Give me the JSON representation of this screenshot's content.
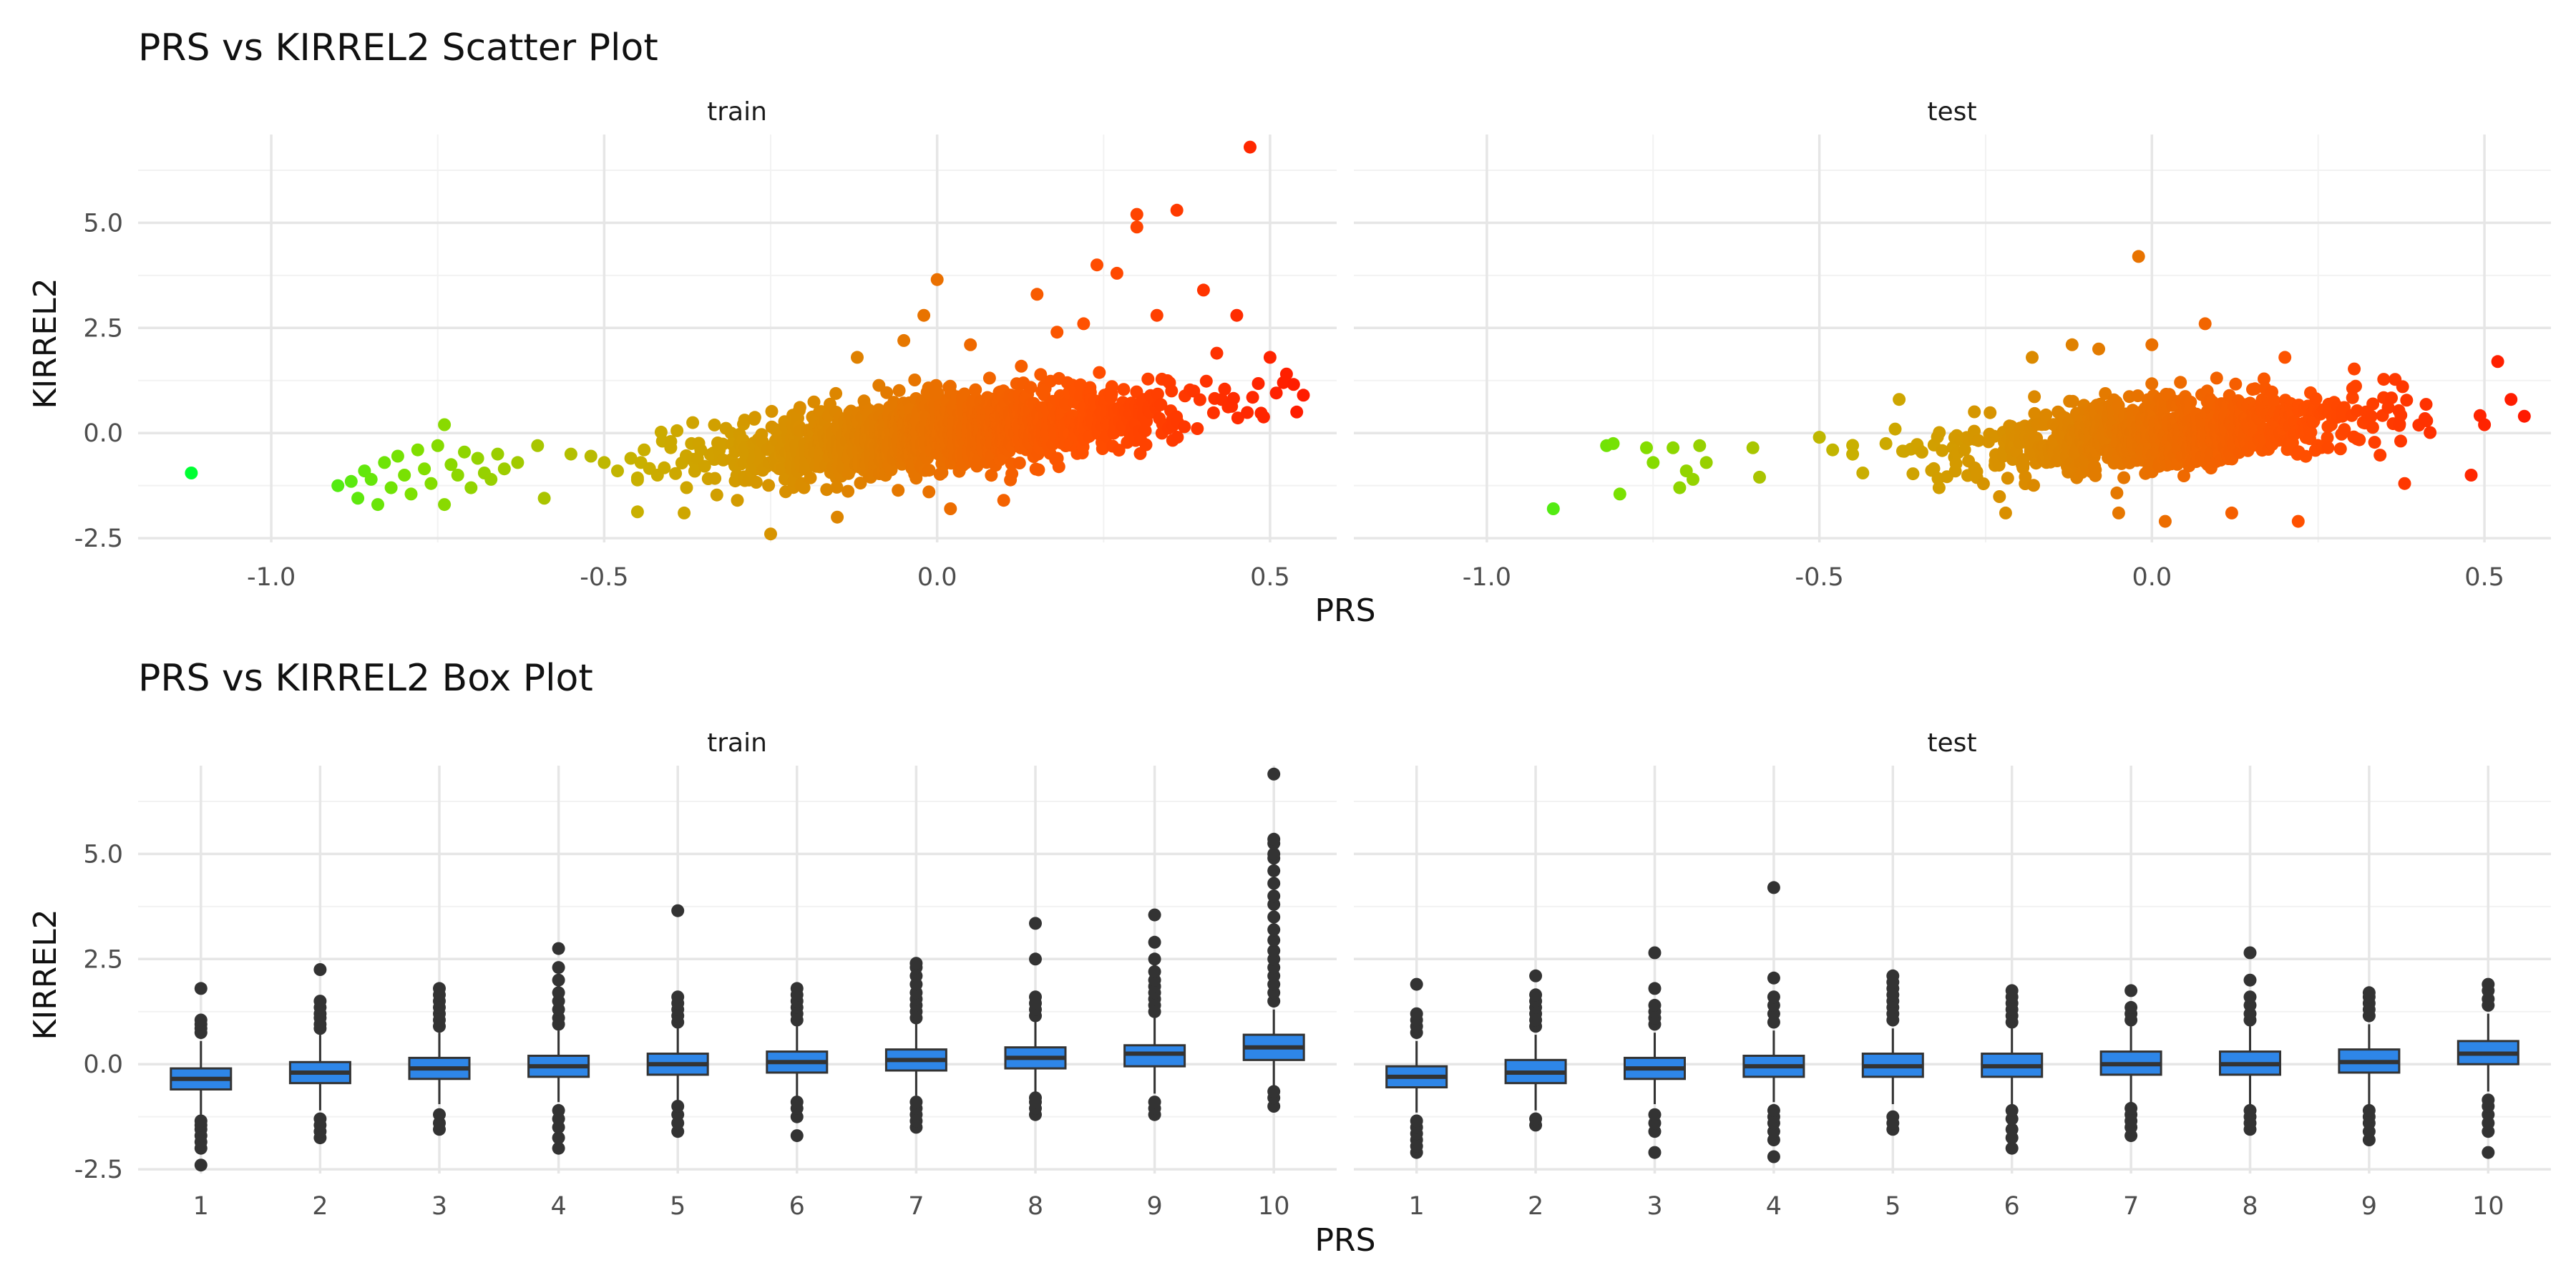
{
  "chart_data": [
    {
      "type": "scatter",
      "title": "PRS vs KIRREL2 Scatter Plot",
      "xlabel": "PRS",
      "ylabel": "KIRREL2",
      "xlim": [
        -1.2,
        0.6
      ],
      "ylim": [
        -2.6,
        7.1
      ],
      "xticks": [
        -1.0,
        -0.5,
        0.0,
        0.5
      ],
      "xtick_labels": [
        "-1.0",
        "-0.5",
        "0.0",
        "0.5"
      ],
      "yticks": [
        -2.5,
        0.0,
        2.5,
        5.0
      ],
      "ytick_labels": [
        "-2.5",
        "0.0",
        "2.5",
        "5.0"
      ],
      "grid": true,
      "color_gradient": [
        "#00ff33",
        "#7fe000",
        "#c9b000",
        "#e08000",
        "#ff5000",
        "#ff1a00"
      ],
      "facets": [
        {
          "name": "train",
          "dense_cloud": {
            "n": 1800,
            "x_center": 0.02,
            "x_sd": 0.16,
            "slope": 1.55,
            "y_sd": 0.42
          },
          "points": [
            [
              -1.12,
              -0.95
            ],
            [
              -0.9,
              -1.25
            ],
            [
              -0.88,
              -1.15
            ],
            [
              -0.87,
              -1.55
            ],
            [
              -0.86,
              -0.9
            ],
            [
              -0.85,
              -1.1
            ],
            [
              -0.84,
              -1.7
            ],
            [
              -0.83,
              -0.7
            ],
            [
              -0.82,
              -1.3
            ],
            [
              -0.81,
              -0.55
            ],
            [
              -0.8,
              -1.0
            ],
            [
              -0.79,
              -1.45
            ],
            [
              -0.78,
              -0.4
            ],
            [
              -0.77,
              -0.85
            ],
            [
              -0.76,
              -1.2
            ],
            [
              -0.75,
              -0.3
            ],
            [
              -0.74,
              -1.7
            ],
            [
              -0.74,
              0.2
            ],
            [
              -0.73,
              -0.75
            ],
            [
              -0.72,
              -1.0
            ],
            [
              -0.71,
              -0.45
            ],
            [
              -0.7,
              -1.3
            ],
            [
              -0.69,
              -0.6
            ],
            [
              -0.68,
              -0.95
            ],
            [
              -0.67,
              -1.1
            ],
            [
              -0.66,
              -0.5
            ],
            [
              -0.65,
              -0.85
            ],
            [
              -0.63,
              -0.7
            ],
            [
              -0.6,
              -0.3
            ],
            [
              -0.59,
              -1.55
            ],
            [
              -0.55,
              -0.5
            ],
            [
              -0.52,
              -0.55
            ],
            [
              -0.5,
              -0.7
            ],
            [
              -0.48,
              -0.9
            ],
            [
              -0.46,
              -0.6
            ],
            [
              -0.44,
              -0.4
            ],
            [
              -0.42,
              -1.0
            ],
            [
              -0.4,
              -0.2
            ],
            [
              -0.38,
              -1.9
            ],
            [
              -0.36,
              -0.6
            ],
            [
              -0.3,
              -1.6
            ],
            [
              -0.25,
              -2.4
            ],
            [
              -0.2,
              -1.3
            ],
            [
              -0.15,
              -2.0
            ],
            [
              -0.12,
              1.8
            ],
            [
              -0.05,
              2.2
            ],
            [
              -0.02,
              2.8
            ],
            [
              0.0,
              3.65
            ],
            [
              0.02,
              -1.8
            ],
            [
              0.05,
              2.1
            ],
            [
              0.1,
              -1.6
            ],
            [
              0.15,
              3.3
            ],
            [
              0.18,
              2.4
            ],
            [
              0.22,
              2.6
            ],
            [
              0.24,
              4.0
            ],
            [
              0.27,
              3.8
            ],
            [
              0.3,
              5.2
            ],
            [
              0.3,
              4.9
            ],
            [
              0.33,
              2.8
            ],
            [
              0.36,
              5.3
            ],
            [
              0.4,
              3.4
            ],
            [
              0.42,
              1.9
            ],
            [
              0.45,
              2.8
            ],
            [
              0.47,
              6.8
            ],
            [
              0.5,
              1.8
            ],
            [
              0.52,
              1.2
            ],
            [
              0.54,
              0.5
            ],
            [
              0.55,
              0.9
            ]
          ]
        },
        {
          "name": "test",
          "dense_cloud": {
            "n": 1000,
            "x_center": 0.02,
            "x_sd": 0.15,
            "slope": 1.2,
            "y_sd": 0.42
          },
          "points": [
            [
              -0.9,
              -1.8
            ],
            [
              -0.82,
              -0.3
            ],
            [
              -0.81,
              -0.25
            ],
            [
              -0.8,
              -1.45
            ],
            [
              -0.76,
              -0.35
            ],
            [
              -0.75,
              -0.7
            ],
            [
              -0.72,
              -0.35
            ],
            [
              -0.71,
              -1.3
            ],
            [
              -0.7,
              -0.9
            ],
            [
              -0.69,
              -1.1
            ],
            [
              -0.68,
              -0.3
            ],
            [
              -0.67,
              -0.7
            ],
            [
              -0.6,
              -0.35
            ],
            [
              -0.59,
              -1.05
            ],
            [
              -0.5,
              -0.1
            ],
            [
              -0.48,
              -0.4
            ],
            [
              -0.4,
              -0.25
            ],
            [
              -0.38,
              0.8
            ],
            [
              -0.32,
              -1.3
            ],
            [
              -0.22,
              -1.9
            ],
            [
              -0.18,
              1.8
            ],
            [
              -0.12,
              2.1
            ],
            [
              -0.08,
              2.0
            ],
            [
              -0.05,
              -1.9
            ],
            [
              -0.02,
              4.2
            ],
            [
              0.0,
              2.1
            ],
            [
              0.02,
              -2.1
            ],
            [
              0.08,
              2.6
            ],
            [
              0.12,
              -1.9
            ],
            [
              0.2,
              1.8
            ],
            [
              0.22,
              -2.1
            ],
            [
              0.38,
              -1.2
            ],
            [
              0.48,
              -1.0
            ],
            [
              0.5,
              0.2
            ],
            [
              0.52,
              1.7
            ],
            [
              0.54,
              0.8
            ],
            [
              0.56,
              0.4
            ]
          ]
        }
      ]
    },
    {
      "type": "box",
      "title": "PRS vs KIRREL2 Box Plot",
      "xlabel": "PRS",
      "ylabel": "KIRREL2",
      "categories": [
        "1",
        "2",
        "3",
        "4",
        "5",
        "6",
        "7",
        "8",
        "9",
        "10"
      ],
      "ylim": [
        -2.6,
        7.1
      ],
      "yticks": [
        -2.5,
        0.0,
        2.5,
        5.0
      ],
      "ytick_labels": [
        "-2.5",
        "0.0",
        "2.5",
        "5.0"
      ],
      "grid": true,
      "box_color": "#2e86e8",
      "facets": [
        {
          "name": "train",
          "boxes": [
            {
              "q1": -0.6,
              "median": -0.35,
              "q3": -0.1,
              "wlo": -1.2,
              "whi": 0.55,
              "outliers": [
                -2.4,
                -2.0,
                -1.85,
                -1.7,
                -1.55,
                -1.45,
                -1.35,
                0.75,
                0.85,
                0.95,
                1.05,
                1.8
              ]
            },
            {
              "q1": -0.45,
              "median": -0.2,
              "q3": 0.05,
              "wlo": -1.1,
              "whi": 0.7,
              "outliers": [
                -1.75,
                -1.6,
                -1.45,
                -1.3,
                0.85,
                0.95,
                1.1,
                1.2,
                1.35,
                1.5,
                2.25
              ]
            },
            {
              "q1": -0.35,
              "median": -0.1,
              "q3": 0.15,
              "wlo": -0.95,
              "whi": 0.75,
              "outliers": [
                -1.55,
                -1.4,
                -1.2,
                0.9,
                1.05,
                1.2,
                1.35,
                1.5,
                1.65,
                1.8
              ]
            },
            {
              "q1": -0.3,
              "median": -0.05,
              "q3": 0.2,
              "wlo": -0.9,
              "whi": 0.8,
              "outliers": [
                -2.0,
                -1.75,
                -1.5,
                -1.3,
                -1.1,
                0.95,
                1.1,
                1.3,
                1.5,
                1.7,
                2.0,
                2.3,
                2.75
              ]
            },
            {
              "q1": -0.25,
              "median": 0.0,
              "q3": 0.25,
              "wlo": -0.85,
              "whi": 0.85,
              "outliers": [
                -1.6,
                -1.4,
                -1.2,
                -1.0,
                1.0,
                1.15,
                1.3,
                1.45,
                1.6,
                3.65
              ]
            },
            {
              "q1": -0.2,
              "median": 0.05,
              "q3": 0.3,
              "wlo": -0.8,
              "whi": 0.9,
              "outliers": [
                -1.7,
                -1.25,
                -1.05,
                -0.9,
                1.05,
                1.2,
                1.35,
                1.5,
                1.65,
                1.8
              ]
            },
            {
              "q1": -0.15,
              "median": 0.1,
              "q3": 0.35,
              "wlo": -0.75,
              "whi": 0.95,
              "outliers": [
                -1.5,
                -1.35,
                -1.2,
                -1.05,
                -0.9,
                1.1,
                1.25,
                1.4,
                1.55,
                1.7,
                1.9,
                2.1,
                2.3,
                2.4
              ]
            },
            {
              "q1": -0.1,
              "median": 0.15,
              "q3": 0.4,
              "wlo": -0.7,
              "whi": 1.0,
              "outliers": [
                -1.2,
                -1.05,
                -0.9,
                -0.8,
                1.15,
                1.3,
                1.45,
                1.6,
                2.5,
                3.35
              ]
            },
            {
              "q1": -0.05,
              "median": 0.25,
              "q3": 0.45,
              "wlo": -0.7,
              "whi": 1.1,
              "outliers": [
                -1.2,
                -1.05,
                -0.9,
                1.25,
                1.4,
                1.55,
                1.7,
                1.85,
                2.0,
                2.2,
                2.5,
                2.9,
                3.55
              ]
            },
            {
              "q1": 0.1,
              "median": 0.4,
              "q3": 0.7,
              "wlo": -0.5,
              "whi": 1.3,
              "outliers": [
                -1.0,
                -0.8,
                -0.65,
                1.5,
                1.7,
                1.9,
                2.1,
                2.3,
                2.5,
                2.7,
                2.95,
                3.2,
                3.5,
                3.8,
                4.0,
                4.3,
                4.6,
                4.9,
                5.0,
                5.25,
                5.35,
                6.9
              ]
            }
          ]
        },
        {
          "name": "test",
          "boxes": [
            {
              "q1": -0.55,
              "median": -0.3,
              "q3": -0.05,
              "wlo": -1.15,
              "whi": 0.55,
              "outliers": [
                -2.1,
                -1.95,
                -1.8,
                -1.65,
                -1.5,
                -1.35,
                0.75,
                0.9,
                1.05,
                1.2,
                1.9
              ]
            },
            {
              "q1": -0.45,
              "median": -0.2,
              "q3": 0.1,
              "wlo": -1.1,
              "whi": 0.7,
              "outliers": [
                -1.45,
                -1.3,
                0.9,
                1.05,
                1.2,
                1.35,
                1.5,
                1.65,
                2.1
              ]
            },
            {
              "q1": -0.35,
              "median": -0.1,
              "q3": 0.15,
              "wlo": -0.95,
              "whi": 0.75,
              "outliers": [
                -2.1,
                -1.6,
                -1.4,
                -1.2,
                0.95,
                1.1,
                1.25,
                1.4,
                1.8,
                2.65
              ]
            },
            {
              "q1": -0.3,
              "median": -0.05,
              "q3": 0.2,
              "wlo": -0.9,
              "whi": 0.8,
              "outliers": [
                -2.2,
                -1.8,
                -1.6,
                -1.4,
                -1.25,
                -1.1,
                1.0,
                1.2,
                1.4,
                1.6,
                2.05,
                4.2
              ]
            },
            {
              "q1": -0.3,
              "median": -0.05,
              "q3": 0.25,
              "wlo": -0.95,
              "whi": 0.85,
              "outliers": [
                -1.55,
                -1.4,
                -1.25,
                1.05,
                1.2,
                1.35,
                1.5,
                1.65,
                1.8,
                1.95,
                2.1
              ]
            },
            {
              "q1": -0.3,
              "median": -0.05,
              "q3": 0.25,
              "wlo": -0.95,
              "whi": 0.85,
              "outliers": [
                -2.0,
                -1.75,
                -1.55,
                -1.3,
                -1.1,
                1.0,
                1.15,
                1.3,
                1.45,
                1.6,
                1.75
              ]
            },
            {
              "q1": -0.25,
              "median": 0.0,
              "q3": 0.3,
              "wlo": -0.95,
              "whi": 0.9,
              "outliers": [
                -1.7,
                -1.5,
                -1.35,
                -1.2,
                -1.05,
                1.05,
                1.2,
                1.35,
                1.75
              ]
            },
            {
              "q1": -0.25,
              "median": 0.0,
              "q3": 0.3,
              "wlo": -0.95,
              "whi": 0.9,
              "outliers": [
                -1.55,
                -1.4,
                -1.25,
                -1.1,
                1.05,
                1.2,
                1.4,
                1.6,
                2.0,
                2.65
              ]
            },
            {
              "q1": -0.2,
              "median": 0.05,
              "q3": 0.35,
              "wlo": -0.95,
              "whi": 0.95,
              "outliers": [
                -1.8,
                -1.6,
                -1.4,
                -1.25,
                -1.1,
                1.15,
                1.3,
                1.45,
                1.6,
                1.7
              ]
            },
            {
              "q1": 0.0,
              "median": 0.25,
              "q3": 0.55,
              "wlo": -0.65,
              "whi": 1.2,
              "outliers": [
                -2.1,
                -1.6,
                -1.4,
                -1.2,
                -1.0,
                -0.85,
                1.4,
                1.55,
                1.75,
                1.9
              ]
            }
          ]
        }
      ]
    }
  ]
}
